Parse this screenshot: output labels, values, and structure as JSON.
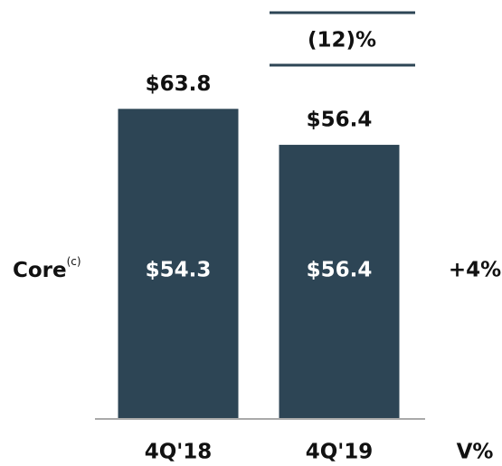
{
  "chart_data": {
    "type": "bar",
    "categories": [
      "4Q'18",
      "4Q'19"
    ],
    "values": [
      63.8,
      56.4
    ],
    "value_labels": [
      "$63.8",
      "$56.4"
    ],
    "color": "#2d4555",
    "ylim": [
      0,
      70
    ],
    "core": {
      "label": "Core",
      "superscript": "(c)",
      "value_labels": [
        "$54.3",
        "$56.4"
      ],
      "change": "+4%"
    },
    "total_change": "(12)%",
    "change_header": "V%"
  }
}
